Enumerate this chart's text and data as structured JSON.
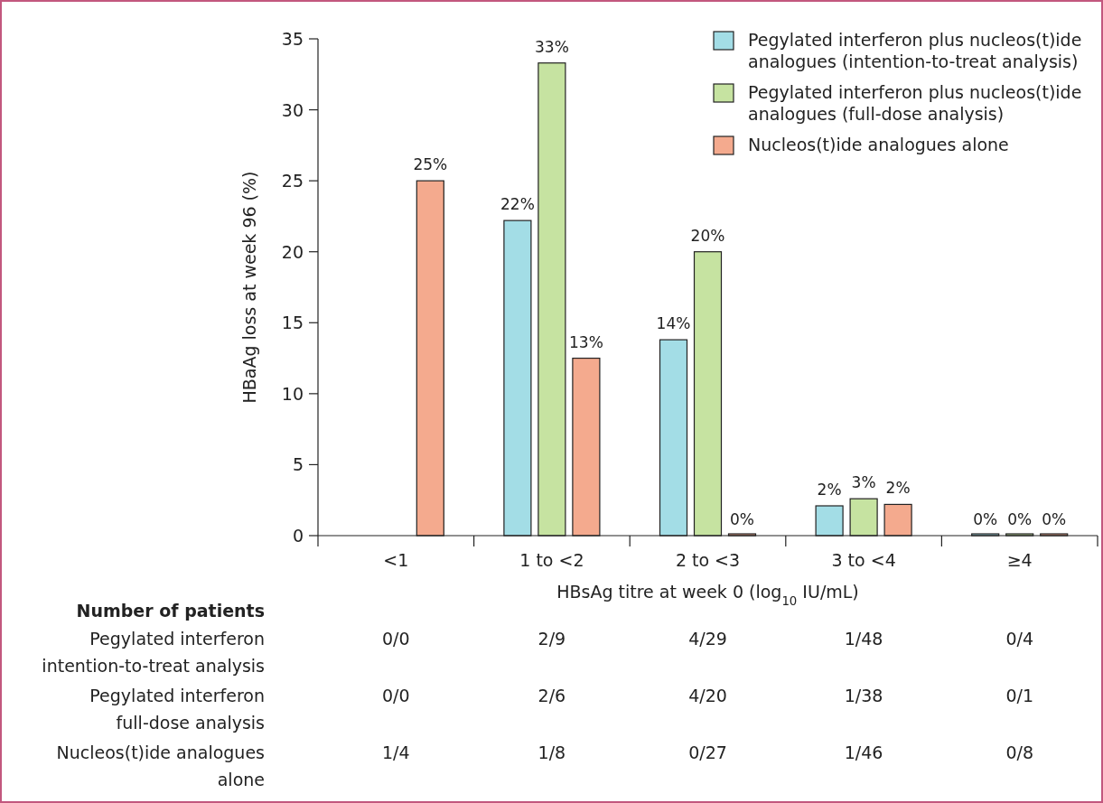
{
  "chart_data": {
    "type": "bar",
    "ylabel": "HBaAg  loss at week 96 (%)",
    "xlabel": "HBsAg titre at week 0 (log$_{10}$ IU/mL)",
    "categories": [
      "<1",
      "1 to <2",
      "2 to <3",
      "3 to <4",
      "≥4"
    ],
    "series": [
      {
        "name": "Pegylated interferon plus nucleos(t)ide analogues (intention-to-treat analysis)",
        "color": "#a3dde6",
        "values": [
          null,
          22.2,
          13.8,
          2.1,
          0
        ],
        "value_labels": [
          null,
          "22%",
          "14%",
          "2%",
          "0%"
        ]
      },
      {
        "name": "Pegylated interferon plus nucleos(t)ide analogues (full-dose analysis)",
        "color": "#c6e3a1",
        "values": [
          null,
          33.3,
          20,
          2.6,
          0
        ],
        "value_labels": [
          null,
          "33%",
          "20%",
          "3%",
          "0%"
        ]
      },
      {
        "name": "Nucleos(t)ide analogues alone",
        "color": "#f4aa8e",
        "values": [
          25,
          12.5,
          0,
          2.2,
          0
        ],
        "value_labels": [
          "25%",
          "13%",
          "0%",
          "2%",
          "0%"
        ]
      }
    ],
    "ylim": [
      0,
      35
    ],
    "yticks": [
      0,
      5,
      10,
      15,
      20,
      25,
      30,
      35
    ],
    "grid": false,
    "legend": "top right",
    "annotations": [
      "Number of patients",
      "Pegylated interferon\nintention-to-treat analysis",
      "0/0",
      "2/9",
      "4/29",
      "1/48",
      "0/4",
      "Pegylated interferon\nfull-dose analysis",
      "0/0",
      "2/6",
      "4/20",
      "1/38",
      "0/1",
      "Nucleos(t)ide analogues\nalone",
      "1/4",
      "1/8",
      "0/27",
      "1/46",
      "0/8"
    ]
  }
}
